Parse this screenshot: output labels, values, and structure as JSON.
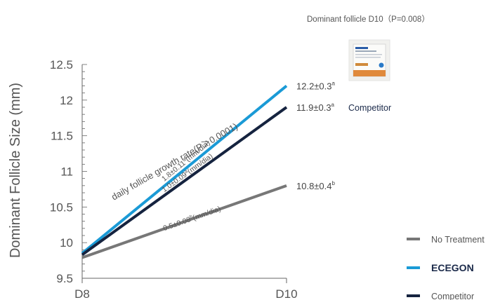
{
  "chart_data": {
    "type": "line",
    "title": "Dominant follicle D10（P=0.008）",
    "ylabel": "Dominant Follicle Size (mm)",
    "xlabel": "",
    "categories": [
      "D8",
      "D10"
    ],
    "ylim": [
      9.5,
      12.5
    ],
    "y_ticks": [
      "9.5",
      "10",
      "10.5",
      "11",
      "11.5",
      "12",
      "12.5"
    ],
    "y_tick_values": [
      9.5,
      10,
      10.5,
      11,
      11.5,
      12,
      12.5
    ],
    "grid": false,
    "legend_position": "bottom-right",
    "series": [
      {
        "name": "ECEGON",
        "color": "#1a9ad6",
        "values": [
          9.85,
          12.2
        ],
        "end_label": "12.2±0.3",
        "end_sup": "a",
        "rate_label": "1.8±0.11",
        "rate_sup": "a",
        "rate_unit": "(mm/dia)"
      },
      {
        "name": "Competitor",
        "color": "#15233f",
        "values": [
          9.83,
          11.9
        ],
        "end_label": "11.9±0.3",
        "end_sup": "a",
        "rate_label": "1.0±0.09",
        "rate_sup": "a",
        "rate_unit": "(mm/dia)"
      },
      {
        "name": "No Treatment",
        "color": "#777777",
        "values": [
          9.79,
          10.8
        ],
        "end_label": "10.8±0.4",
        "end_sup": "b",
        "rate_label": "0.5±0.08",
        "rate_sup": "b",
        "rate_unit": "(mm/dia)"
      }
    ],
    "annotation": "daily follicle growth rate(P＞0.0001)",
    "competitor_label": "Competitor",
    "legend": [
      {
        "label": "No Treatment",
        "color": "#777777"
      },
      {
        "label": "ECEGON",
        "color": "#1a9ad6"
      },
      {
        "label": "Competitor",
        "color": "#15233f"
      }
    ]
  }
}
